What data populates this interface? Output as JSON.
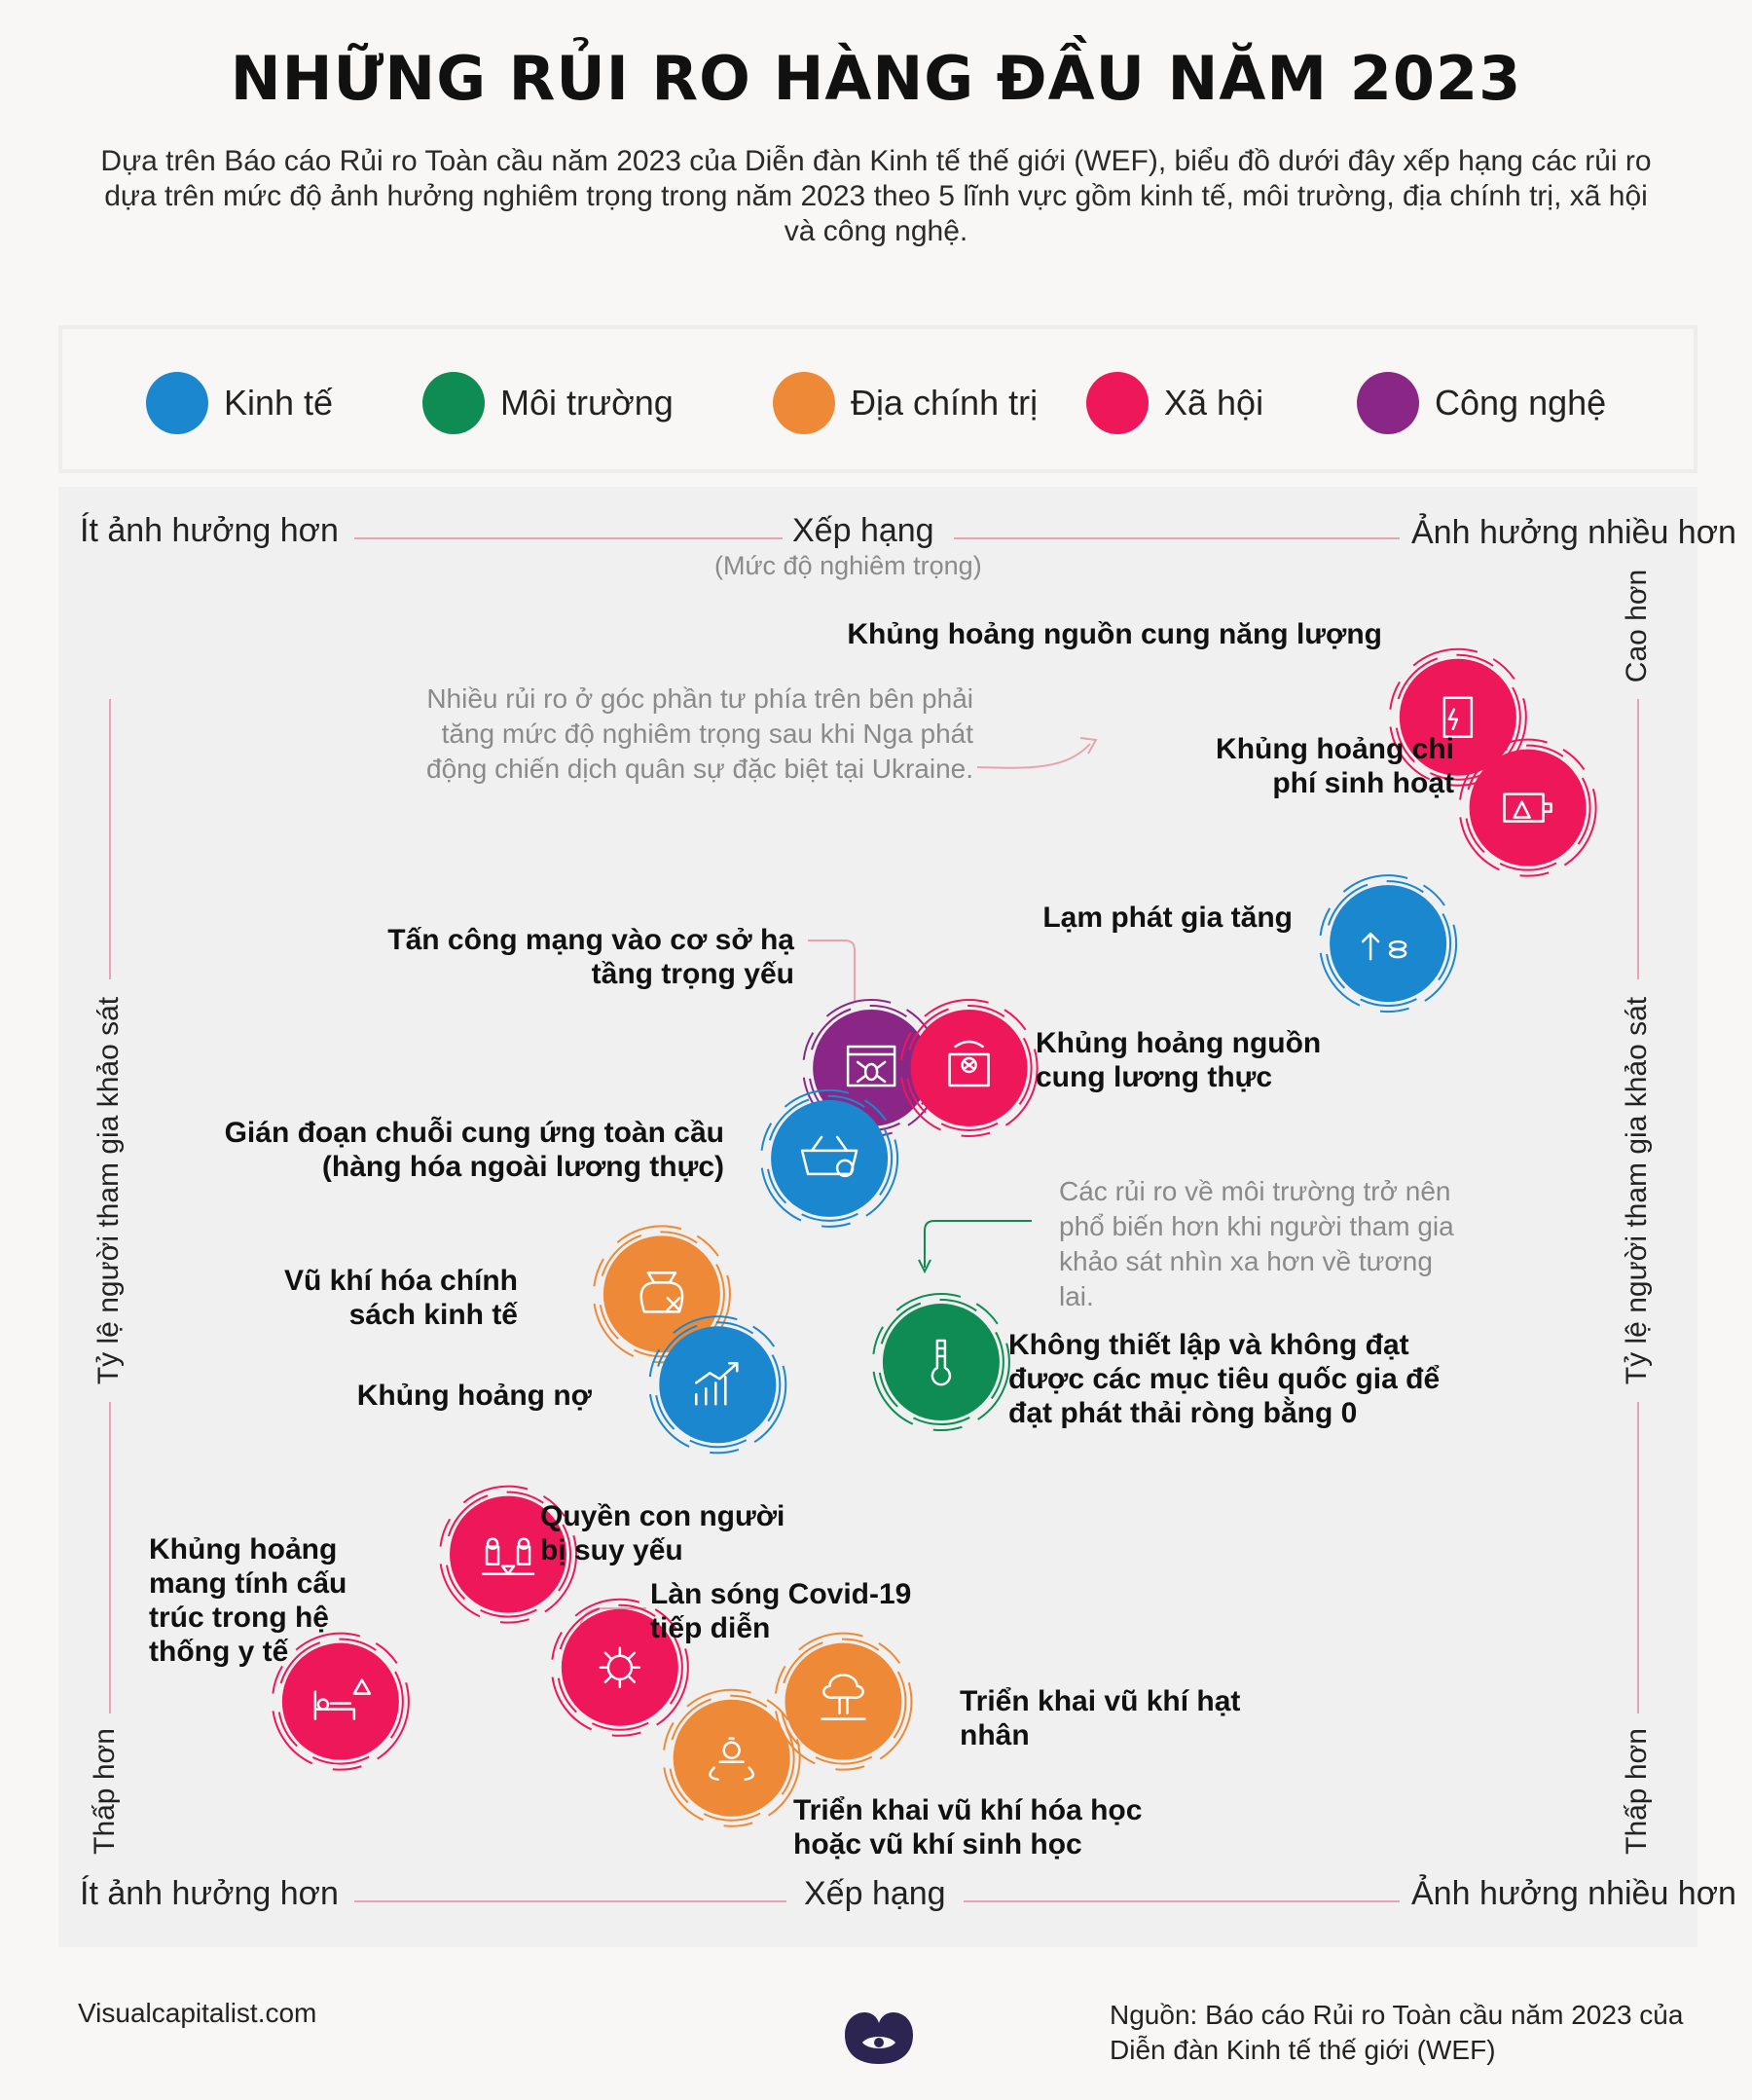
{
  "title": "NHỮNG RỦI RO HÀNG ĐẦU NĂM 2023",
  "intro": "Dựa trên Báo cáo Rủi ro Toàn cầu năm 2023 của Diễn đàn Kinh tế thế giới (WEF), biểu đồ dưới đây xếp hạng các rủi ro dựa trên mức độ ảnh hưởng nghiêm trọng trong năm 2023 theo 5 lĩnh vực gồm kinh tế, môi trường, địa chính trị, xã hội và công nghệ.",
  "legend": [
    {
      "label": "Kinh tế",
      "color": "#1b87cf"
    },
    {
      "label": "Môi trường",
      "color": "#0e8c53"
    },
    {
      "label": "Địa chính trị",
      "color": "#ee8a37"
    },
    {
      "label": "Xã hội",
      "color": "#ee1759"
    },
    {
      "label": "Công nghệ",
      "color": "#8a2786"
    }
  ],
  "axes": {
    "left_label": "Ít ảnh hưởng hơn",
    "right_label": "Ảnh hưởng nhiều hơn",
    "top_center": "Xếp hạng",
    "top_sub": "(Mức độ nghiêm trọng)",
    "bottom_center": "Xếp hạng",
    "y_label": "Tỷ lệ người tham gia khảo sát",
    "y_high": "Cao hơn",
    "y_low": "Thấp hơn"
  },
  "notes": {
    "ukraine": "Nhiều rủi ro ở góc phần tư phía trên bên phải tăng mức độ nghiêm trọng sau khi Nga phát động chiến dịch quân sự đặc biệt tại Ukraine.",
    "environment": "Các rủi ro về môi trường trở nên phổ biến hơn khi người tham gia khảo sát nhìn xa hơn về tương lai."
  },
  "chart_data": {
    "type": "scatter",
    "title": "NHỮNG RỦI RO HÀNG ĐẦU NĂM 2023",
    "xlabel": "Xếp hạng (Mức độ nghiêm trọng)",
    "ylabel": "Tỷ lệ người tham gia khảo sát",
    "xlim": [
      0,
      100
    ],
    "ylim": [
      0,
      100
    ],
    "points": [
      {
        "label": "Khủng hoảng nguồn cung năng lượng",
        "category": "Xã hội",
        "color": "#ee1759",
        "icon": "energy-icon",
        "x": 91,
        "y": 94
      },
      {
        "label": "Khủng hoảng chi phí sinh hoạt",
        "category": "Xã hội",
        "color": "#ee1759",
        "icon": "wallet-warning-icon",
        "x": 96,
        "y": 86
      },
      {
        "label": "Lạm phát gia tăng",
        "category": "Kinh tế",
        "color": "#1b87cf",
        "icon": "inflation-icon",
        "x": 86,
        "y": 74
      },
      {
        "label": "Tấn công mạng vào cơ sở hạ tầng trọng yếu",
        "category": "Công nghệ",
        "color": "#8a2786",
        "icon": "cyber-bug-icon",
        "x": 49,
        "y": 63
      },
      {
        "label": "Khủng hoảng nguồn cung lương thực",
        "category": "Xã hội",
        "color": "#ee1759",
        "icon": "food-sack-icon",
        "x": 56,
        "y": 63
      },
      {
        "label": "Gián đoạn chuỗi cung ứng toàn cầu (hàng hóa ngoài lương thực)",
        "category": "Kinh tế",
        "color": "#1b87cf",
        "icon": "basket-x-icon",
        "x": 46,
        "y": 55
      },
      {
        "label": "Vũ khí hóa chính sách kinh tế",
        "category": "Địa chính trị",
        "color": "#ee8a37",
        "icon": "money-bag-icon",
        "x": 34,
        "y": 43
      },
      {
        "label": "Khủng hoảng nợ",
        "category": "Kinh tế",
        "color": "#1b87cf",
        "icon": "growth-chart-icon",
        "x": 38,
        "y": 35
      },
      {
        "label": "Không thiết lập và không đạt được các mục tiêu quốc gia để đạt phát thải ròng bằng 0",
        "category": "Môi trường",
        "color": "#0e8c53",
        "icon": "thermometer-icon",
        "x": 54,
        "y": 37
      },
      {
        "label": "Quyền con người bị suy yếu",
        "category": "Xã hội",
        "color": "#ee1759",
        "icon": "people-scale-icon",
        "x": 23,
        "y": 20
      },
      {
        "label": "Làn sóng Covid-19 tiếp diễn",
        "category": "Xã hội",
        "color": "#ee1759",
        "icon": "virus-icon",
        "x": 31,
        "y": 10
      },
      {
        "label": "Khủng hoảng mang tính cấu trúc trong hệ thống y tế",
        "category": "Xã hội",
        "color": "#ee1759",
        "icon": "hospital-bed-icon",
        "x": 11,
        "y": 7
      },
      {
        "label": "Triển khai vũ khí hạt nhân",
        "category": "Địa chính trị",
        "color": "#ee8a37",
        "icon": "nuclear-icon",
        "x": 47,
        "y": 7
      },
      {
        "label": "Triển khai vũ khí hóa học hoặc vũ khí sinh học",
        "category": "Địa chính trị",
        "color": "#ee8a37",
        "icon": "biohazard-icon",
        "x": 39,
        "y": 2
      }
    ]
  },
  "footer": {
    "site": "Visualcapitalist.com",
    "source": "Nguồn: Báo cáo Rủi ro Toàn cầu năm 2023 của Diễn đàn Kinh tế thế giới (WEF)"
  }
}
